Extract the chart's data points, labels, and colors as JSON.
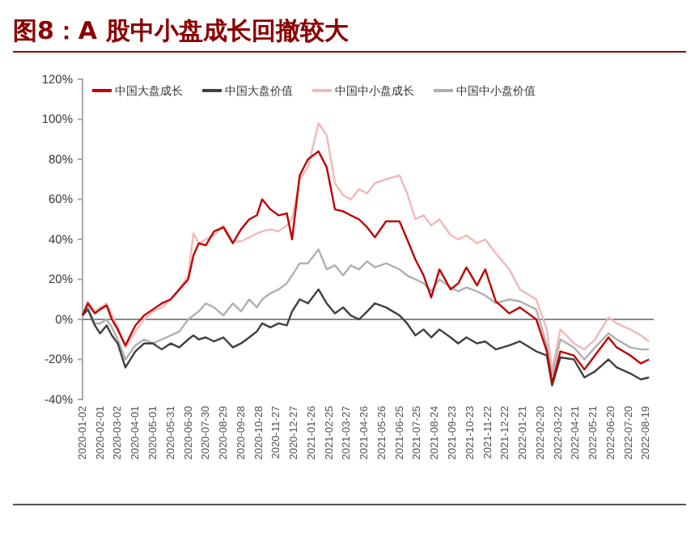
{
  "chart_data": {
    "type": "line",
    "title": "图8：A 股中小盘成长回撤较大",
    "x": [
      "2020-01-02",
      "2020-01-11",
      "2020-01-23",
      "2020-02-01",
      "2020-02-12",
      "2020-02-21",
      "2020-03-02",
      "2020-03-15",
      "2020-04-01",
      "2020-04-16",
      "2020-05-01",
      "2020-05-16",
      "2020-05-31",
      "2020-06-15",
      "2020-06-30",
      "2020-07-09",
      "2020-07-18",
      "2020-07-30",
      "2020-08-13",
      "2020-08-29",
      "2020-09-14",
      "2020-09-28",
      "2020-10-12",
      "2020-10-25",
      "2020-11-03",
      "2020-11-17",
      "2020-12-01",
      "2020-12-15",
      "2020-12-24",
      "2021-01-06",
      "2021-01-20",
      "2021-02-07",
      "2021-02-21",
      "2021-03-07",
      "2021-03-21",
      "2021-04-03",
      "2021-04-17",
      "2021-05-01",
      "2021-05-14",
      "2021-06-02",
      "2021-06-25",
      "2021-07-08",
      "2021-07-22",
      "2021-08-05",
      "2021-08-18",
      "2021-09-01",
      "2021-09-20",
      "2021-10-03",
      "2021-10-17",
      "2021-11-04",
      "2021-11-18",
      "2021-12-06",
      "2021-12-29",
      "2022-01-16",
      "2022-02-13",
      "2022-03-03",
      "2022-03-12",
      "2022-03-26",
      "2022-04-18",
      "2022-05-06",
      "2022-05-24",
      "2022-06-16",
      "2022-06-30",
      "2022-07-23",
      "2022-08-10",
      "2022-08-24"
    ],
    "series": [
      {
        "name": "中国大盘成长",
        "color": "#c00000",
        "values": [
          2,
          8,
          3,
          5,
          7,
          0,
          -5,
          -13,
          -3,
          2,
          5,
          8,
          10,
          15,
          20,
          32,
          38,
          37,
          44,
          46,
          38,
          45,
          50,
          52,
          60,
          55,
          52,
          53,
          40,
          72,
          80,
          84,
          76,
          55,
          54,
          52,
          50,
          46,
          41,
          49,
          49,
          40,
          30,
          22,
          11,
          25,
          15,
          18,
          26,
          17,
          25,
          9,
          3,
          6,
          0,
          -16,
          -32,
          -16,
          -18,
          -25,
          -18,
          -9,
          -14,
          -18,
          -22,
          -20
        ]
      },
      {
        "name": "中国大盘价值",
        "color": "#404040",
        "values": [
          2,
          5,
          -3,
          -7,
          -3,
          -8,
          -12,
          -24,
          -16,
          -12,
          -12,
          -15,
          -12,
          -14,
          -10,
          -8,
          -10,
          -9,
          -11,
          -9,
          -14,
          -12,
          -9,
          -6,
          -2,
          -4,
          -2,
          -3,
          4,
          10,
          8,
          15,
          8,
          3,
          6,
          2,
          0,
          4,
          8,
          6,
          2,
          -2,
          -8,
          -5,
          -9,
          -5,
          -9,
          -12,
          -9,
          -12,
          -11,
          -15,
          -13,
          -11,
          -16,
          -18,
          -33,
          -19,
          -20,
          -29,
          -26,
          -20,
          -24,
          -27,
          -30,
          -29
        ]
      },
      {
        "name": "中国中小盘成长",
        "color": "#f2b8b8",
        "values": [
          2,
          9,
          4,
          6,
          8,
          2,
          -4,
          -14,
          -6,
          0,
          4,
          6,
          10,
          15,
          22,
          43,
          38,
          40,
          42,
          47,
          39,
          39,
          41,
          43,
          44,
          45,
          44,
          47,
          50,
          70,
          76,
          98,
          92,
          68,
          62,
          60,
          65,
          63,
          68,
          70,
          72,
          63,
          50,
          52,
          47,
          50,
          42,
          40,
          42,
          38,
          40,
          33,
          25,
          15,
          10,
          -5,
          -25,
          -5,
          -12,
          -15,
          -10,
          1,
          -2,
          -5,
          -8,
          -11
        ]
      },
      {
        "name": "中国中小盘价值",
        "color": "#b0b0b0",
        "values": [
          2,
          6,
          -2,
          -2,
          0,
          -4,
          -10,
          -20,
          -13,
          -10,
          -12,
          -10,
          -8,
          -6,
          0,
          2,
          4,
          8,
          6,
          2,
          8,
          4,
          10,
          6,
          10,
          13,
          15,
          18,
          22,
          28,
          28,
          35,
          25,
          27,
          22,
          27,
          25,
          29,
          26,
          28,
          25,
          22,
          20,
          18,
          14,
          20,
          16,
          14,
          16,
          14,
          12,
          8,
          10,
          9,
          5,
          -13,
          -28,
          -10,
          -14,
          -20,
          -14,
          -7,
          -10,
          -14,
          -15,
          -15
        ]
      }
    ],
    "xlim": [
      "2020-01-02",
      "2022-09-01"
    ],
    "xticks": [
      "2020-01-02",
      "2020-02-01",
      "2020-03-02",
      "2020-04-01",
      "2020-05-01",
      "2020-05-31",
      "2020-06-30",
      "2020-07-30",
      "2020-08-29",
      "2020-09-28",
      "2020-10-28",
      "2020-11-27",
      "2020-12-27",
      "2021-01-26",
      "2021-02-25",
      "2021-03-27",
      "2021-04-26",
      "2021-05-26",
      "2021-06-25",
      "2021-07-25",
      "2021-08-24",
      "2021-09-23",
      "2021-10-23",
      "2021-11-22",
      "2021-12-22",
      "2022-01-21",
      "2022-02-20",
      "2022-03-22",
      "2022-04-21",
      "2022-05-21",
      "2022-06-20",
      "2022-07-20",
      "2022-08-19"
    ],
    "ylim": [
      -40,
      120
    ],
    "yticks": [
      {
        "value": -40,
        "label": "-40%"
      },
      {
        "value": -20,
        "label": "-20%"
      },
      {
        "value": 0,
        "label": "0%"
      },
      {
        "value": 20,
        "label": "20%"
      },
      {
        "value": 40,
        "label": "40%"
      },
      {
        "value": 60,
        "label": "60%"
      },
      {
        "value": 80,
        "label": "80%"
      },
      {
        "value": 100,
        "label": "100%"
      },
      {
        "value": 120,
        "label": "120%"
      }
    ],
    "legend": "top",
    "line_style": "solid",
    "marker": "none"
  }
}
